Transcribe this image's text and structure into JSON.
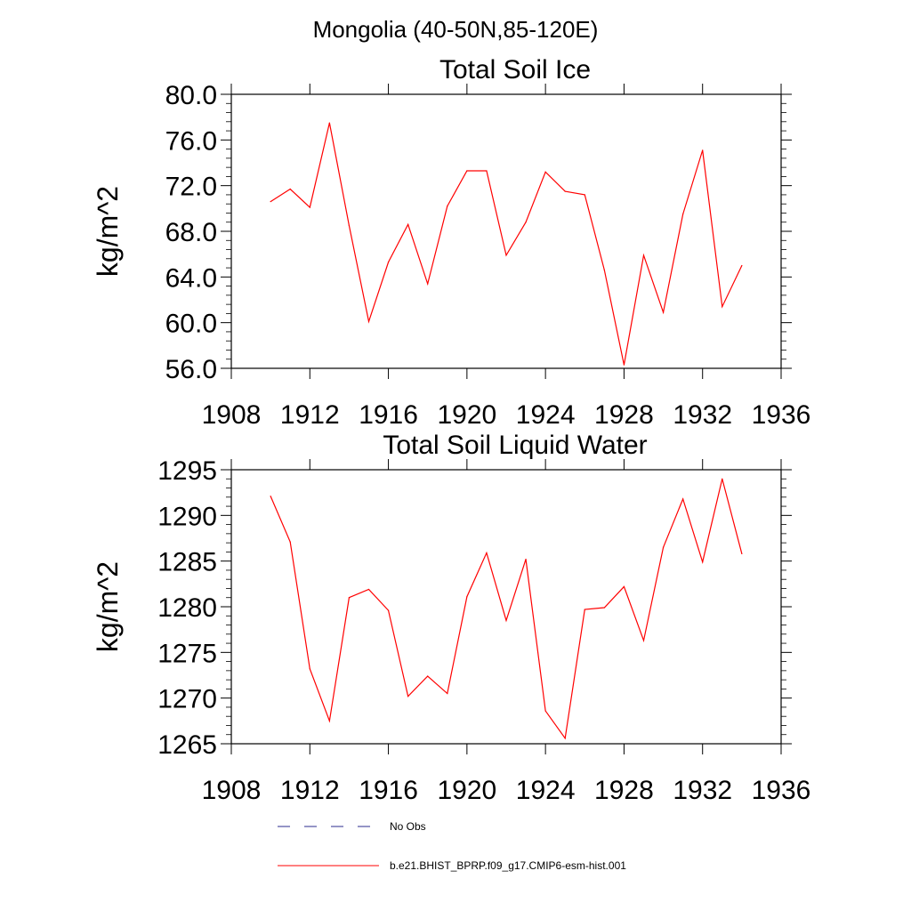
{
  "figure": {
    "title": "Mongolia (40-50N,85-120E)"
  },
  "legend": {
    "items": [
      {
        "label": "No Obs",
        "color": "#2b2b8c",
        "dash": "dashed"
      },
      {
        "label": "b.e21.BHIST_BPRP.f09_g17.CMIP6-esm-hist.001",
        "color": "#ff0000",
        "dash": "solid"
      }
    ]
  },
  "chart_data": [
    {
      "type": "line",
      "title": "Total Soil Ice",
      "xlabel": "",
      "ylabel": "kg/m^2",
      "xlim": [
        1908,
        1936
      ],
      "ylim": [
        56,
        80
      ],
      "xticks": [
        1908,
        1912,
        1916,
        1920,
        1924,
        1928,
        1932,
        1936
      ],
      "xtick_labels": [
        "1908",
        "1912",
        "1916",
        "1920",
        "1924",
        "1928",
        "1932",
        "1936"
      ],
      "yticks": [
        56,
        60,
        64,
        68,
        72,
        76,
        80
      ],
      "ytick_labels": [
        "56.0",
        "60.0",
        "64.0",
        "68.0",
        "72.0",
        "76.0",
        "80.0"
      ],
      "grid": false,
      "series": [
        {
          "name": "b.e21.BHIST_BPRP.f09_g17.CMIP6-esm-hist.001",
          "color": "#ff0000",
          "x": [
            1910,
            1911,
            1912,
            1913,
            1914,
            1915,
            1916,
            1917,
            1918,
            1919,
            1920,
            1921,
            1922,
            1923,
            1924,
            1925,
            1926,
            1927,
            1928,
            1929,
            1930,
            1931,
            1932,
            1933,
            1934
          ],
          "y": [
            70.6,
            71.7,
            70.1,
            77.5,
            68.5,
            60.1,
            65.3,
            68.6,
            63.4,
            70.2,
            73.3,
            73.3,
            65.9,
            68.8,
            73.2,
            71.5,
            71.2,
            64.6,
            56.3,
            65.9,
            60.9,
            69.5,
            75.1,
            61.4,
            65.0
          ]
        }
      ]
    },
    {
      "type": "line",
      "title": "Total Soil Liquid Water",
      "xlabel": "",
      "ylabel": "kg/m^2",
      "xlim": [
        1908,
        1936
      ],
      "ylim": [
        1265,
        1295
      ],
      "xticks": [
        1908,
        1912,
        1916,
        1920,
        1924,
        1928,
        1932,
        1936
      ],
      "xtick_labels": [
        "1908",
        "1912",
        "1916",
        "1920",
        "1924",
        "1928",
        "1932",
        "1936"
      ],
      "yticks": [
        1265,
        1270,
        1275,
        1280,
        1285,
        1290,
        1295
      ],
      "ytick_labels": [
        "1265",
        "1270",
        "1275",
        "1280",
        "1285",
        "1290",
        "1295"
      ],
      "grid": false,
      "series": [
        {
          "name": "b.e21.BHIST_BPRP.f09_g17.CMIP6-esm-hist.001",
          "color": "#ff0000",
          "x": [
            1910,
            1911,
            1912,
            1913,
            1914,
            1915,
            1916,
            1917,
            1918,
            1919,
            1920,
            1921,
            1922,
            1923,
            1924,
            1925,
            1926,
            1927,
            1928,
            1929,
            1930,
            1931,
            1932,
            1933,
            1934
          ],
          "y": [
            1292.1,
            1287.1,
            1273.2,
            1267.5,
            1281.0,
            1281.9,
            1279.6,
            1270.2,
            1272.4,
            1270.5,
            1281.1,
            1285.9,
            1278.5,
            1285.2,
            1268.6,
            1265.6,
            1279.7,
            1279.9,
            1282.2,
            1276.3,
            1286.5,
            1291.8,
            1284.9,
            1294.0,
            1285.8
          ]
        }
      ]
    }
  ]
}
